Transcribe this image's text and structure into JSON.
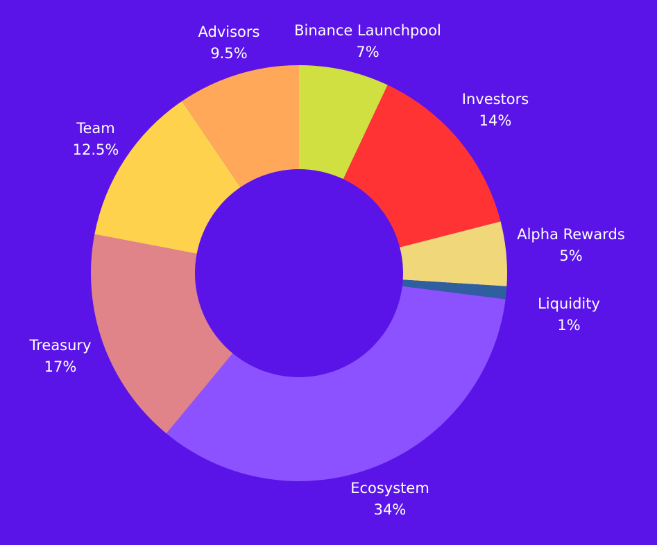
{
  "chart_data": {
    "type": "pie",
    "variant": "donut",
    "start_angle_deg": 0,
    "direction": "clockwise",
    "legend": "none",
    "background_color": "#5a14e8",
    "label_color": "#ffffff",
    "slices": [
      {
        "name": "Binance Launchpool",
        "value": 7,
        "label": "7%",
        "color": "#d1e041"
      },
      {
        "name": "Investors",
        "value": 14,
        "label": "14%",
        "color": "#ff3333"
      },
      {
        "name": "Alpha Rewards",
        "value": 5,
        "label": "5%",
        "color": "#f0d77a"
      },
      {
        "name": "Liquidity",
        "value": 1,
        "label": "1%",
        "color": "#2f5f9f"
      },
      {
        "name": "Ecosystem",
        "value": 34,
        "label": "34%",
        "color": "#8c52ff"
      },
      {
        "name": "Treasury",
        "value": 17,
        "label": "17%",
        "color": "#e0848a"
      },
      {
        "name": "Team",
        "value": 12.5,
        "label": "12.5%",
        "color": "#ffd24d"
      },
      {
        "name": "Advisors",
        "value": 9.5,
        "label": "9.5%",
        "color": "#ffa85a"
      }
    ]
  }
}
